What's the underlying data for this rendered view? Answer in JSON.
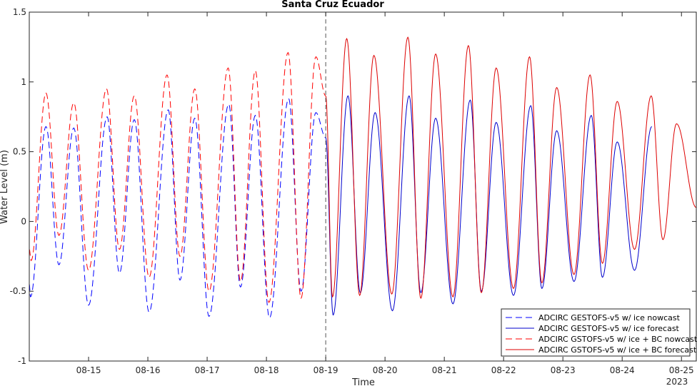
{
  "chart_data": {
    "type": "line",
    "title": "Santa Cruz Ecuador",
    "xlabel": "Time",
    "ylabel": "Water Level (m)",
    "year_label": "2023",
    "xlim": [
      "2023-08-14 00:00",
      "2023-08-25 06:00"
    ],
    "ylim": [
      -1,
      1.5
    ],
    "x_ticks": [
      {
        "date": "2023-08-15",
        "label": "08-15"
      },
      {
        "date": "2023-08-16",
        "label": "08-16"
      },
      {
        "date": "2023-08-17",
        "label": "08-17"
      },
      {
        "date": "2023-08-18",
        "label": "08-18"
      },
      {
        "date": "2023-08-19",
        "label": "08-19"
      },
      {
        "date": "2023-08-20",
        "label": "08-20"
      },
      {
        "date": "2023-08-21",
        "label": "08-21"
      },
      {
        "date": "2023-08-22",
        "label": "08-22"
      },
      {
        "date": "2023-08-23",
        "label": "08-23"
      },
      {
        "date": "2023-08-24",
        "label": "08-24"
      },
      {
        "date": "2023-08-25",
        "label": "08-25"
      }
    ],
    "y_ticks": [
      {
        "value": -1,
        "label": "-1"
      },
      {
        "value": -0.5,
        "label": "-0.5"
      },
      {
        "value": 0,
        "label": "0"
      },
      {
        "value": 0.5,
        "label": "0.5"
      },
      {
        "value": 1,
        "label": "1"
      },
      {
        "value": 1.5,
        "label": "1.5"
      }
    ],
    "grid": false,
    "nowcast_forecast_divider": "2023-08-19 00:00",
    "legend_position": "bottom-right",
    "series": [
      {
        "name": "ADCIRC GESTOFS-v5 w/ ice nowcast",
        "color": "#0000ff",
        "dash": "dashed",
        "extrema": [
          {
            "t": "2023-08-14 00:00",
            "v": -0.45
          },
          {
            "t": "2023-08-14 00:30",
            "v": -0.54
          },
          {
            "t": "2023-08-14 06:45",
            "v": 0.68
          },
          {
            "t": "2023-08-14 12:00",
            "v": -0.31
          },
          {
            "t": "2023-08-14 18:00",
            "v": 0.67
          },
          {
            "t": "2023-08-15 00:00",
            "v": -0.6
          },
          {
            "t": "2023-08-15 07:30",
            "v": 0.75
          },
          {
            "t": "2023-08-15 12:30",
            "v": -0.37
          },
          {
            "t": "2023-08-15 18:30",
            "v": 0.73
          },
          {
            "t": "2023-08-16 00:30",
            "v": -0.65
          },
          {
            "t": "2023-08-16 08:15",
            "v": 0.8
          },
          {
            "t": "2023-08-16 13:00",
            "v": -0.42
          },
          {
            "t": "2023-08-16 19:00",
            "v": 0.74
          },
          {
            "t": "2023-08-17 00:45",
            "v": -0.68
          },
          {
            "t": "2023-08-17 08:45",
            "v": 0.84
          },
          {
            "t": "2023-08-17 13:30",
            "v": -0.47
          },
          {
            "t": "2023-08-17 19:30",
            "v": 0.76
          },
          {
            "t": "2023-08-18 01:15",
            "v": -0.69
          },
          {
            "t": "2023-08-18 09:00",
            "v": 0.88
          },
          {
            "t": "2023-08-18 14:00",
            "v": -0.5
          },
          {
            "t": "2023-08-18 20:00",
            "v": 0.78
          },
          {
            "t": "2023-08-19 00:00",
            "v": 0.6
          }
        ]
      },
      {
        "name": "ADCIRC GESTOFS-v5 w/ ice forecast",
        "color": "#0000cc",
        "dash": "solid",
        "extrema": [
          {
            "t": "2023-08-19 00:00",
            "v": 0.6
          },
          {
            "t": "2023-08-19 03:00",
            "v": -0.67
          },
          {
            "t": "2023-08-19 09:00",
            "v": 0.9
          },
          {
            "t": "2023-08-19 14:00",
            "v": -0.51
          },
          {
            "t": "2023-08-19 20:00",
            "v": 0.78
          },
          {
            "t": "2023-08-20 03:00",
            "v": -0.64
          },
          {
            "t": "2023-08-20 09:45",
            "v": 0.9
          },
          {
            "t": "2023-08-20 14:30",
            "v": -0.51
          },
          {
            "t": "2023-08-20 20:30",
            "v": 0.74
          },
          {
            "t": "2023-08-21 03:30",
            "v": -0.59
          },
          {
            "t": "2023-08-21 10:30",
            "v": 0.87
          },
          {
            "t": "2023-08-21 15:00",
            "v": -0.5
          },
          {
            "t": "2023-08-21 21:00",
            "v": 0.71
          },
          {
            "t": "2023-08-22 04:00",
            "v": -0.53
          },
          {
            "t": "2023-08-22 11:00",
            "v": 0.83
          },
          {
            "t": "2023-08-22 15:30",
            "v": -0.48
          },
          {
            "t": "2023-08-22 21:30",
            "v": 0.65
          },
          {
            "t": "2023-08-23 04:30",
            "v": -0.43
          },
          {
            "t": "2023-08-23 11:30",
            "v": 0.76
          },
          {
            "t": "2023-08-23 16:00",
            "v": -0.4
          },
          {
            "t": "2023-08-23 22:00",
            "v": 0.57
          },
          {
            "t": "2023-08-24 05:00",
            "v": -0.35
          },
          {
            "t": "2023-08-24 12:00",
            "v": 0.68
          }
        ]
      },
      {
        "name": "ADCIRC GSTOFS-v5 w/ ice + BC nowcast",
        "color": "#ff0000",
        "dash": "dashed",
        "extrema": [
          {
            "t": "2023-08-14 00:00",
            "v": -0.2
          },
          {
            "t": "2023-08-14 00:45",
            "v": -0.28
          },
          {
            "t": "2023-08-14 06:45",
            "v": 0.92
          },
          {
            "t": "2023-08-14 12:00",
            "v": -0.1
          },
          {
            "t": "2023-08-14 18:00",
            "v": 0.85
          },
          {
            "t": "2023-08-15 00:00",
            "v": -0.35
          },
          {
            "t": "2023-08-15 07:15",
            "v": 0.95
          },
          {
            "t": "2023-08-15 12:30",
            "v": -0.2
          },
          {
            "t": "2023-08-15 18:30",
            "v": 0.9
          },
          {
            "t": "2023-08-16 00:30",
            "v": -0.4
          },
          {
            "t": "2023-08-16 07:45",
            "v": 1.05
          },
          {
            "t": "2023-08-16 13:00",
            "v": -0.25
          },
          {
            "t": "2023-08-16 19:00",
            "v": 0.95
          },
          {
            "t": "2023-08-17 00:45",
            "v": -0.5
          },
          {
            "t": "2023-08-17 08:30",
            "v": 1.1
          },
          {
            "t": "2023-08-17 13:30",
            "v": -0.43
          },
          {
            "t": "2023-08-17 19:30",
            "v": 1.08
          },
          {
            "t": "2023-08-18 01:00",
            "v": -0.58
          },
          {
            "t": "2023-08-18 08:45",
            "v": 1.21
          },
          {
            "t": "2023-08-18 14:00",
            "v": -0.55
          },
          {
            "t": "2023-08-18 20:00",
            "v": 1.18
          },
          {
            "t": "2023-08-19 00:00",
            "v": 0.9
          }
        ]
      },
      {
        "name": "ADCIRC GSTOFS-v5 w/ ice + BC forecast",
        "color": "#dd0000",
        "dash": "solid",
        "extrema": [
          {
            "t": "2023-08-19 00:00",
            "v": 0.9
          },
          {
            "t": "2023-08-19 02:45",
            "v": -0.54
          },
          {
            "t": "2023-08-19 08:30",
            "v": 1.31
          },
          {
            "t": "2023-08-19 13:45",
            "v": -0.53
          },
          {
            "t": "2023-08-19 19:30",
            "v": 1.19
          },
          {
            "t": "2023-08-20 02:45",
            "v": -0.52
          },
          {
            "t": "2023-08-20 09:15",
            "v": 1.32
          },
          {
            "t": "2023-08-20 14:30",
            "v": -0.55
          },
          {
            "t": "2023-08-20 20:30",
            "v": 1.2
          },
          {
            "t": "2023-08-21 03:30",
            "v": -0.54
          },
          {
            "t": "2023-08-21 09:45",
            "v": 1.26
          },
          {
            "t": "2023-08-21 15:00",
            "v": -0.51
          },
          {
            "t": "2023-08-21 21:00",
            "v": 1.1
          },
          {
            "t": "2023-08-22 04:00",
            "v": -0.48
          },
          {
            "t": "2023-08-22 10:30",
            "v": 1.18
          },
          {
            "t": "2023-08-22 15:30",
            "v": -0.44
          },
          {
            "t": "2023-08-22 21:30",
            "v": 0.96
          },
          {
            "t": "2023-08-23 04:30",
            "v": -0.38
          },
          {
            "t": "2023-08-23 11:00",
            "v": 1.05
          },
          {
            "t": "2023-08-23 16:00",
            "v": -0.3
          },
          {
            "t": "2023-08-23 22:00",
            "v": 0.86
          },
          {
            "t": "2023-08-24 05:00",
            "v": -0.2
          },
          {
            "t": "2023-08-24 11:45",
            "v": 0.9
          },
          {
            "t": "2023-08-24 16:30",
            "v": -0.13
          },
          {
            "t": "2023-08-24 22:00",
            "v": 0.7
          },
          {
            "t": "2023-08-25 06:00",
            "v": 0.1
          }
        ]
      }
    ]
  }
}
